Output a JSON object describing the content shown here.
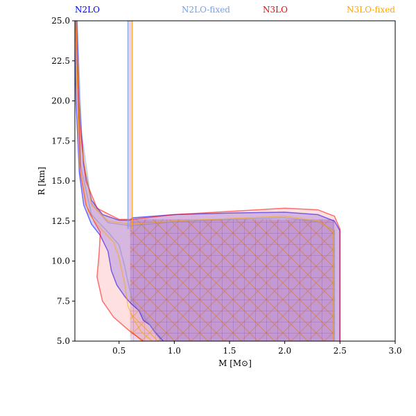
{
  "chart_data": {
    "type": "area",
    "title": "",
    "xlabel": "M [M⊙]",
    "ylabel": "R [km]",
    "xlim": [
      0.1,
      3.0
    ],
    "ylim": [
      5.0,
      25.0
    ],
    "grid": false,
    "legend_placement": "top",
    "x_ticks": [
      0.5,
      1.0,
      1.5,
      2.0,
      2.5,
      3.0
    ],
    "x_tick_labels": [
      "0.5",
      "1.0",
      "1.5",
      "2.0",
      "2.5",
      "3.0"
    ],
    "y_ticks": [
      5.0,
      7.5,
      10.0,
      12.5,
      15.0,
      17.5,
      20.0,
      22.5,
      25.0
    ],
    "y_tick_labels": [
      "5.0",
      "7.5",
      "10.0",
      "12.5",
      "15.0",
      "17.5",
      "20.0",
      "22.5",
      "25.0"
    ],
    "series": [
      {
        "name": "N2LO",
        "color": "#0000ff",
        "fill_alpha": 0.18,
        "outer": [
          [
            0.12,
            25.0
          ],
          [
            0.14,
            20.0
          ],
          [
            0.18,
            16.0
          ],
          [
            0.25,
            13.8
          ],
          [
            0.35,
            12.9
          ],
          [
            0.5,
            12.55
          ],
          [
            0.6,
            12.55
          ],
          [
            0.62,
            12.7
          ],
          [
            1.0,
            12.9
          ],
          [
            1.5,
            13.0
          ],
          [
            2.0,
            13.05
          ],
          [
            2.3,
            12.9
          ],
          [
            2.45,
            12.5
          ],
          [
            2.5,
            11.9
          ],
          [
            2.5,
            5.0
          ]
        ],
        "inner": [
          [
            0.9,
            5.0
          ],
          [
            0.82,
            5.6
          ],
          [
            0.78,
            6.0
          ],
          [
            0.72,
            6.3
          ],
          [
            0.68,
            6.9
          ],
          [
            0.6,
            7.4
          ],
          [
            0.55,
            7.8
          ],
          [
            0.48,
            8.5
          ],
          [
            0.43,
            9.4
          ],
          [
            0.4,
            10.6
          ],
          [
            0.33,
            11.6
          ],
          [
            0.25,
            12.3
          ],
          [
            0.18,
            13.5
          ],
          [
            0.14,
            15.5
          ],
          [
            0.11,
            20.0
          ],
          [
            0.1,
            25.0
          ]
        ]
      },
      {
        "name": "N2LO-fixed",
        "color": "#7b9fe0",
        "fill_alpha": 0.0,
        "outer": [
          [
            0.12,
            25.0
          ],
          [
            0.16,
            18.0
          ],
          [
            0.25,
            13.6
          ],
          [
            0.4,
            12.4
          ],
          [
            0.6,
            12.2
          ],
          [
            1.0,
            12.45
          ],
          [
            1.5,
            12.6
          ],
          [
            2.0,
            12.7
          ],
          [
            2.3,
            12.45
          ],
          [
            2.45,
            11.9
          ],
          [
            2.45,
            5.0
          ]
        ],
        "inner": [
          [
            0.88,
            5.0
          ],
          [
            0.8,
            5.8
          ],
          [
            0.74,
            6.4
          ],
          [
            0.66,
            7.1
          ],
          [
            0.62,
            7.6
          ],
          [
            0.59,
            8.4
          ],
          [
            0.55,
            9.7
          ],
          [
            0.5,
            11.0
          ],
          [
            0.4,
            11.8
          ],
          [
            0.25,
            12.9
          ],
          [
            0.15,
            16.0
          ],
          [
            0.11,
            25.0
          ]
        ]
      },
      {
        "name": "N3LO",
        "color": "#ff0000",
        "fill_alpha": 0.12,
        "outer": [
          [
            0.11,
            25.0
          ],
          [
            0.14,
            19.0
          ],
          [
            0.2,
            15.0
          ],
          [
            0.3,
            13.3
          ],
          [
            0.5,
            12.6
          ],
          [
            0.62,
            12.6
          ],
          [
            1.0,
            12.9
          ],
          [
            1.5,
            13.1
          ],
          [
            2.0,
            13.3
          ],
          [
            2.3,
            13.2
          ],
          [
            2.45,
            12.8
          ],
          [
            2.5,
            12.0
          ],
          [
            2.5,
            5.0
          ]
        ],
        "inner": [
          [
            0.72,
            5.0
          ],
          [
            0.6,
            5.6
          ],
          [
            0.45,
            6.5
          ],
          [
            0.35,
            7.5
          ],
          [
            0.3,
            9.0
          ],
          [
            0.32,
            10.5
          ],
          [
            0.33,
            11.8
          ],
          [
            0.28,
            12.4
          ],
          [
            0.2,
            13.5
          ],
          [
            0.15,
            15.5
          ],
          [
            0.11,
            25.0
          ]
        ]
      },
      {
        "name": "N3LO-fixed",
        "color": "#ffa500",
        "fill_alpha": 0.0,
        "outer": [
          [
            0.11,
            25.0
          ],
          [
            0.15,
            17.5
          ],
          [
            0.25,
            13.5
          ],
          [
            0.4,
            12.5
          ],
          [
            0.6,
            12.3
          ],
          [
            1.0,
            12.5
          ],
          [
            1.5,
            12.65
          ],
          [
            2.0,
            12.8
          ],
          [
            2.3,
            12.5
          ],
          [
            2.44,
            11.9
          ],
          [
            2.44,
            5.0
          ]
        ],
        "inner": [
          [
            0.8,
            5.0
          ],
          [
            0.7,
            5.6
          ],
          [
            0.62,
            6.5
          ],
          [
            0.58,
            7.2
          ],
          [
            0.55,
            8.6
          ],
          [
            0.5,
            10.2
          ],
          [
            0.45,
            11.2
          ],
          [
            0.35,
            11.9
          ],
          [
            0.22,
            13.0
          ],
          [
            0.14,
            16.0
          ],
          [
            0.1,
            25.0
          ]
        ]
      }
    ],
    "vertical_band": {
      "x_left": 0.58,
      "x_right": 0.62,
      "y_top": 25.0,
      "y_bottom": 12.0
    },
    "hatched_region": {
      "x_min": 0.6,
      "x_max": 2.45,
      "y_min": 5.0,
      "y_max": 12.6
    }
  }
}
